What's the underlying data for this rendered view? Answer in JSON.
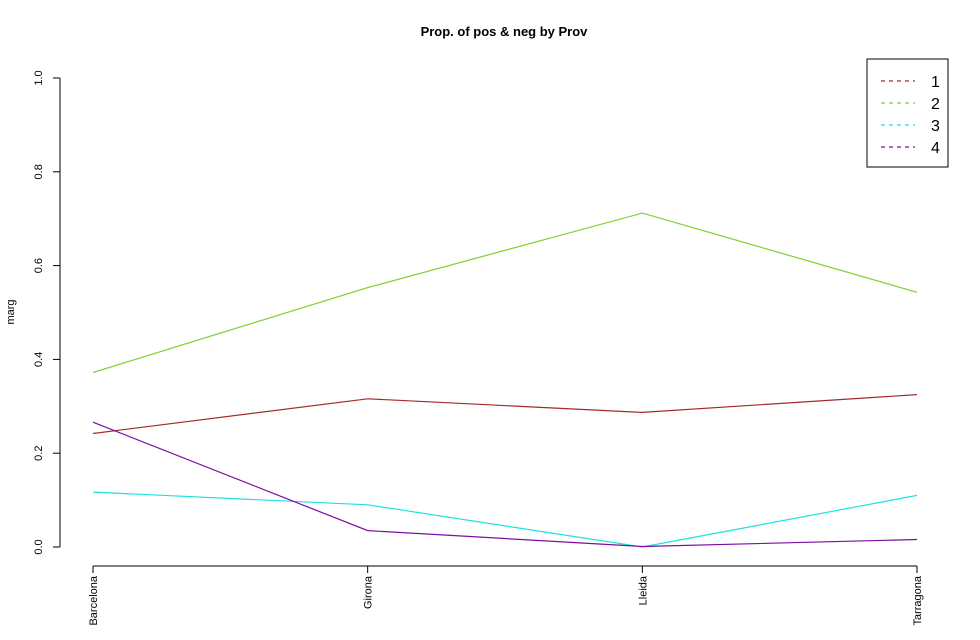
{
  "chart_data": {
    "type": "line",
    "title": "Prop. of pos & neg by Prov",
    "xlabel": "",
    "ylabel": "marg",
    "categories": [
      "Barcelona",
      "Girona",
      "Lleida",
      "Tarragona"
    ],
    "ylim": [
      0,
      1
    ],
    "yticks": [
      "0.0",
      "0.2",
      "0.4",
      "0.6",
      "0.8",
      "1.0"
    ],
    "ytick_values": [
      0,
      0.2,
      0.4,
      0.6,
      0.8,
      1.0
    ],
    "grid": false,
    "legend_placement": "top-right",
    "series": [
      {
        "name": "1",
        "color": "#A52A2A",
        "values": [
          0.242,
          0.316,
          0.287,
          0.325
        ]
      },
      {
        "name": "2",
        "color": "#7FD12B",
        "values": [
          0.372,
          0.553,
          0.712,
          0.543
        ]
      },
      {
        "name": "3",
        "color": "#22E0E0",
        "values": [
          0.117,
          0.09,
          0.0,
          0.11
        ]
      },
      {
        "name": "4",
        "color": "#7B0FA0",
        "values": [
          0.266,
          0.035,
          0.001,
          0.016
        ]
      }
    ]
  }
}
